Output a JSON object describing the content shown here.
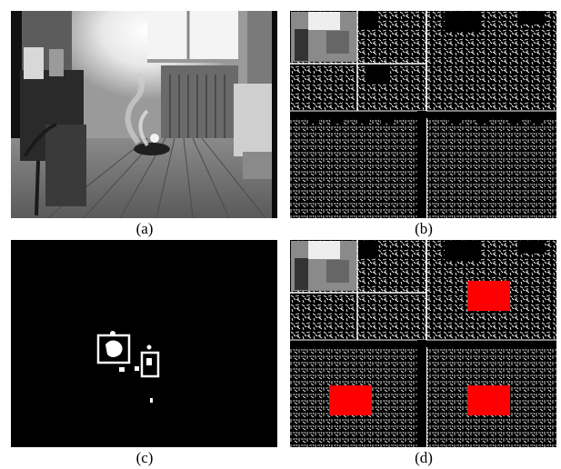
{
  "panels": [
    {
      "id": "a",
      "caption": "(a)"
    },
    {
      "id": "b",
      "caption": "(b)"
    },
    {
      "id": "c",
      "caption": "(c)"
    },
    {
      "id": "d",
      "caption": "(d)"
    }
  ],
  "colors": {
    "background": "#ffffff",
    "frame_black": "#000000",
    "marker_red": "#ff0000",
    "foreground_white": "#ffffff"
  }
}
